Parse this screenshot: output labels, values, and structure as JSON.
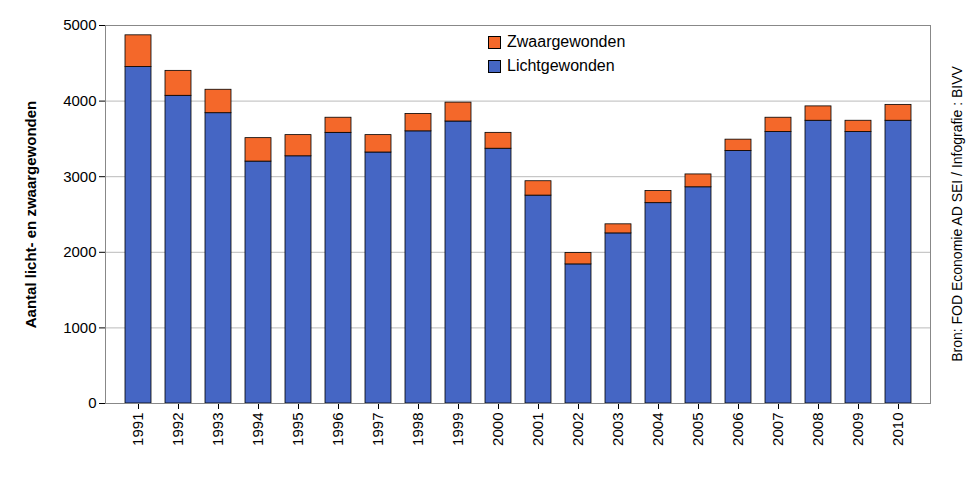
{
  "chart_data": {
    "type": "bar",
    "stacked": true,
    "categories": [
      "1991",
      "1992",
      "1993",
      "1994",
      "1995",
      "1996",
      "1997",
      "1998",
      "1999",
      "2000",
      "2001",
      "2002",
      "2003",
      "2004",
      "2005",
      "2006",
      "2007",
      "2008",
      "2009",
      "2010"
    ],
    "series": [
      {
        "name": "Lichtgewonden",
        "color": "#4566C4",
        "values": [
          4450,
          4070,
          3840,
          3200,
          3270,
          3580,
          3320,
          3600,
          3730,
          3370,
          2750,
          1840,
          2250,
          2650,
          2860,
          3340,
          3590,
          3740,
          3590,
          3740
        ]
      },
      {
        "name": "Zwaargewonden",
        "color": "#F4682A",
        "values": [
          420,
          330,
          310,
          310,
          280,
          200,
          230,
          230,
          250,
          210,
          190,
          150,
          120,
          160,
          170,
          150,
          190,
          190,
          150,
          210
        ]
      }
    ],
    "ylabel": "Aantal licht- en zwaargewonden",
    "ylim": [
      0,
      5000
    ],
    "yticks": [
      0,
      1000,
      2000,
      3000,
      4000,
      5000
    ],
    "grid": true,
    "legend": "top",
    "annotation": "Bron: FOD Economie AD SEI / Infografie : BIVV"
  }
}
